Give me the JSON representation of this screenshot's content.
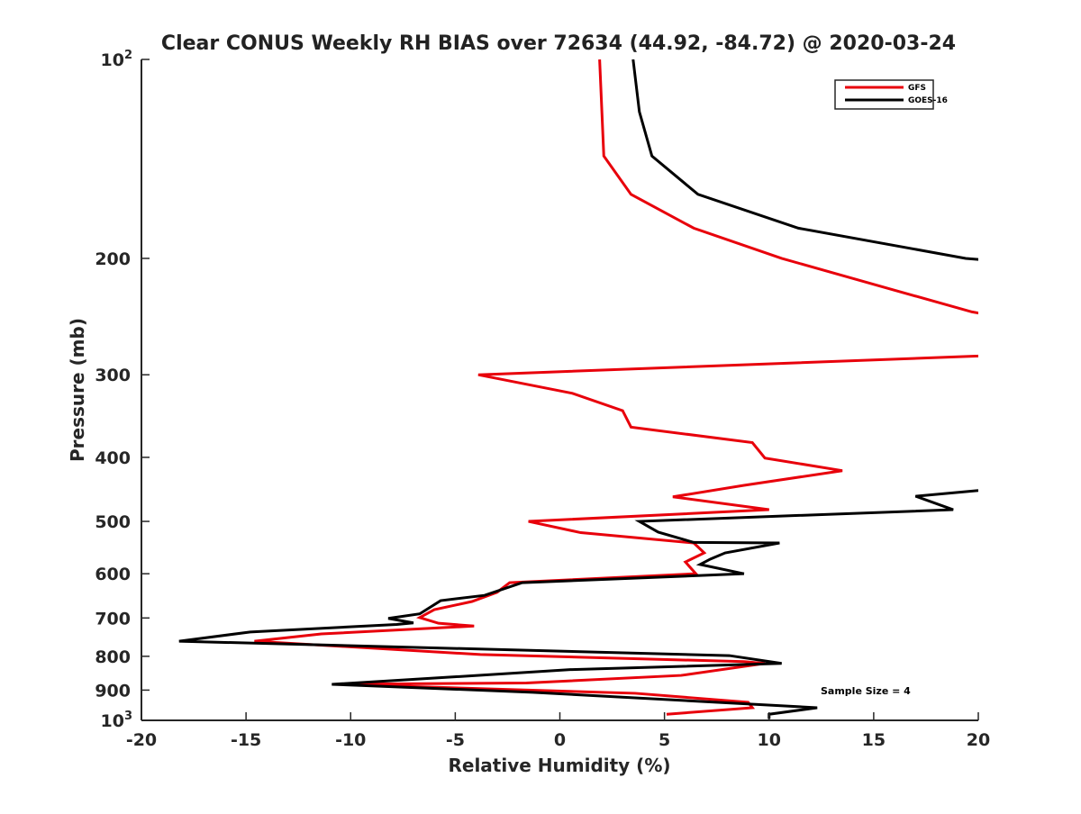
{
  "chart_data": {
    "type": "line",
    "title": "Clear CONUS Weekly RH BIAS over 72634 (44.92, -84.72) @ 2020-03-24",
    "xlabel": "Relative Humidity (%)",
    "ylabel": "Pressure (mb)",
    "xlim": [
      -20,
      20
    ],
    "ylim": [
      1000,
      100
    ],
    "yscale": "log",
    "y_reversed": true,
    "grid": false,
    "xticks": [
      -20,
      -15,
      -10,
      -5,
      0,
      5,
      10,
      15,
      20
    ],
    "xtick_labels": [
      "-20",
      "-15",
      "-10",
      "-5",
      "0",
      "5",
      "10",
      "15",
      "20"
    ],
    "yticks": [
      100,
      200,
      300,
      400,
      500,
      600,
      700,
      800,
      900,
      1000
    ],
    "ytick_labels": [
      {
        "base": "10",
        "exp": "2"
      },
      {
        "base": "200"
      },
      {
        "base": "300"
      },
      {
        "base": "400"
      },
      {
        "base": "500"
      },
      {
        "base": "600"
      },
      {
        "base": "700"
      },
      {
        "base": "800"
      },
      {
        "base": "900"
      },
      {
        "base": "10",
        "exp": "3"
      }
    ],
    "legend": {
      "placement": "top-right",
      "entries": [
        "GFS",
        "GOES-16"
      ]
    },
    "annotation": "Sample Size = 4",
    "series": [
      {
        "name": "GFS",
        "color": "#e8000b",
        "points": [
          [
            1.9,
            100
          ],
          [
            2.1,
            140
          ],
          [
            3.4,
            160
          ],
          [
            6.4,
            180
          ],
          [
            10.6,
            200
          ],
          [
            15.9,
            223
          ],
          [
            19.7,
            241
          ],
          [
            21,
            245
          ],
          [
            22,
            270
          ],
          [
            20,
            281
          ],
          [
            -3.9,
            300
          ],
          [
            0.6,
            320
          ],
          [
            3.0,
            340
          ],
          [
            3.4,
            360
          ],
          [
            9.2,
            380
          ],
          [
            9.8,
            401
          ],
          [
            13.5,
            419
          ],
          [
            8.8,
            441
          ],
          [
            5.4,
            459
          ],
          [
            10.0,
            480
          ],
          [
            -1.5,
            500
          ],
          [
            1.0,
            520
          ],
          [
            6.4,
            539
          ],
          [
            6.9,
            558
          ],
          [
            6.0,
            576
          ],
          [
            6.5,
            600
          ],
          [
            -2.4,
            619
          ],
          [
            -3.0,
            640
          ],
          [
            -4.2,
            661
          ],
          [
            -6.0,
            680
          ],
          [
            -6.7,
            699
          ],
          [
            -5.8,
            713
          ],
          [
            -4.1,
            720
          ],
          [
            -11.4,
            740
          ],
          [
            -14.6,
            759
          ],
          [
            -3.8,
            795
          ],
          [
            8.8,
            815
          ],
          [
            9.8,
            820
          ],
          [
            5.8,
            855
          ],
          [
            -1.6,
            878
          ],
          [
            -10.6,
            882
          ],
          [
            3.6,
            910
          ],
          [
            9.0,
            939
          ],
          [
            9.2,
            957
          ],
          [
            5.1,
            979
          ]
        ]
      },
      {
        "name": "GOES-16",
        "color": "#000000",
        "points": [
          [
            3.5,
            100
          ],
          [
            3.8,
            120
          ],
          [
            4.4,
            140
          ],
          [
            6.6,
            160
          ],
          [
            11.4,
            180
          ],
          [
            19.4,
            200
          ],
          [
            21,
            202
          ],
          [
            24,
            300
          ],
          [
            21,
            445
          ],
          [
            20,
            449
          ],
          [
            17.0,
            458
          ],
          [
            18.8,
            480
          ],
          [
            3.8,
            500
          ],
          [
            4.7,
            519
          ],
          [
            6.4,
            538
          ],
          [
            10.5,
            539
          ],
          [
            7.9,
            558
          ],
          [
            7.2,
            570
          ],
          [
            6.7,
            581
          ],
          [
            8.8,
            600
          ],
          [
            -1.8,
            619
          ],
          [
            -3.6,
            647
          ],
          [
            -5.7,
            659
          ],
          [
            -6.7,
            690
          ],
          [
            -8.2,
            701
          ],
          [
            -7.0,
            712
          ],
          [
            -7.8,
            716
          ],
          [
            -14.8,
            735
          ],
          [
            -18.2,
            759
          ],
          [
            8.1,
            798
          ],
          [
            10.6,
            820
          ],
          [
            0.5,
            838
          ],
          [
            -5.2,
            860
          ],
          [
            -10.9,
            882
          ],
          [
            -1.3,
            907
          ],
          [
            12.3,
            957
          ],
          [
            10.0,
            979
          ],
          [
            10.0,
            995
          ]
        ]
      }
    ]
  }
}
